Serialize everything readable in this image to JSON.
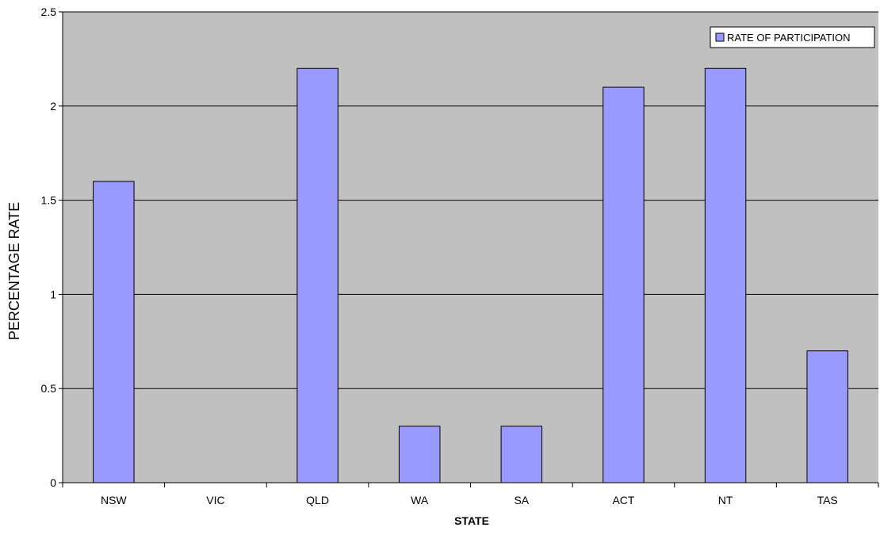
{
  "chart_data": {
    "type": "bar",
    "categories": [
      "NSW",
      "VIC",
      "QLD",
      "WA",
      "SA",
      "ACT",
      "NT",
      "TAS"
    ],
    "series": [
      {
        "name": "RATE OF PARTICIPATION",
        "values": [
          1.6,
          0,
          2.2,
          0.3,
          0.3,
          2.1,
          2.2,
          0.7
        ]
      }
    ],
    "title": "",
    "xlabel": "STATE",
    "ylabel": "PERCENTAGE RATE",
    "ylim": [
      0,
      2.5
    ],
    "yticks": [
      "0",
      "0.5",
      "1",
      "1.5",
      "2",
      "2.5"
    ],
    "grid": true,
    "legend_position": "top-right"
  },
  "colors": {
    "plot_background": "#c0c0c0",
    "bar_fill": "#9999ff",
    "bar_stroke": "#000000",
    "gridline": "#000000"
  }
}
